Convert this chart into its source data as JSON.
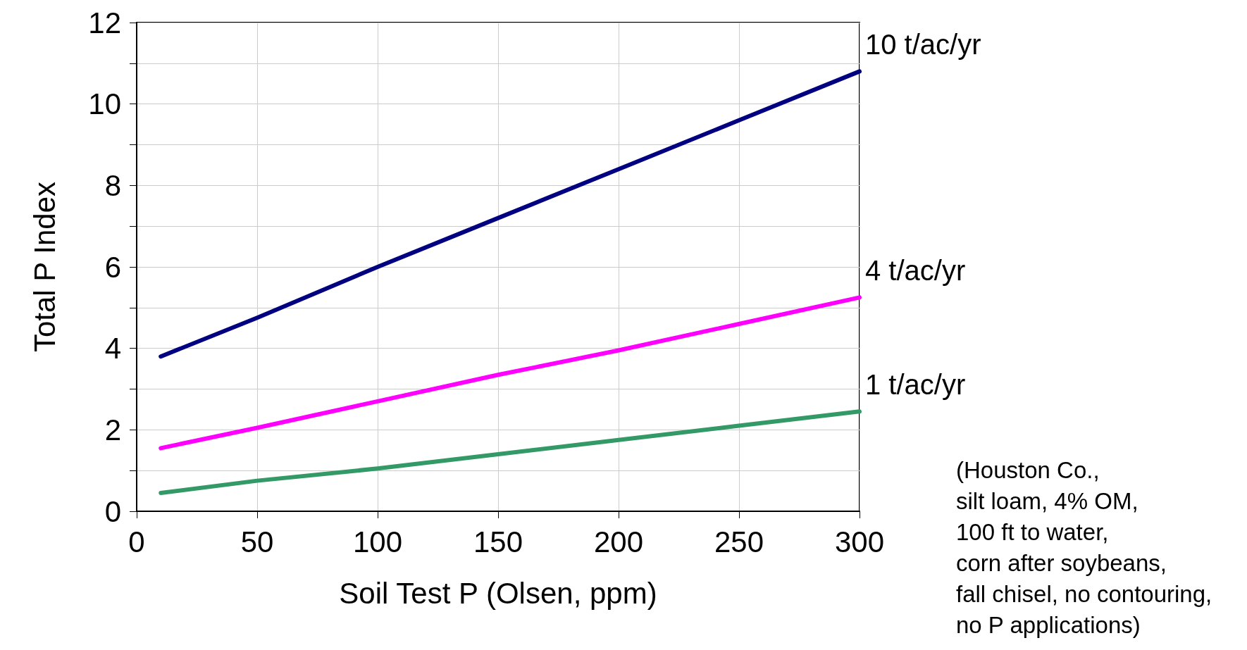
{
  "chart_data": {
    "type": "line",
    "xlabel": "Soil Test P (Olsen, ppm)",
    "ylabel": "Total P Index",
    "annotations": [
      "(Houston Co.,\nsilt loam, 4% OM,\n100 ft to water,\ncorn after soybeans,\nfall chisel, no contouring,\nno P applications)"
    ],
    "x": [
      10,
      50,
      100,
      150,
      200,
      250,
      300
    ],
    "series": [
      {
        "name": "10 t/ac/yr",
        "color": "#000080",
        "values": [
          3.8,
          4.75,
          6.0,
          7.2,
          8.4,
          9.6,
          10.8
        ]
      },
      {
        "name": "4 t/ac/yr",
        "color": "#ff00ff",
        "values": [
          1.55,
          2.05,
          2.7,
          3.35,
          3.95,
          4.6,
          5.25
        ]
      },
      {
        "name": "1 t/ac/yr",
        "color": "#339966",
        "values": [
          0.45,
          0.75,
          1.05,
          1.4,
          1.75,
          2.1,
          2.45
        ]
      }
    ],
    "xlim": [
      0,
      300
    ],
    "xticks": [
      0,
      50,
      100,
      150,
      200,
      250,
      300
    ],
    "ylim": [
      0,
      12
    ],
    "yticks": [
      0,
      {
        "value": 1,
        "label": null
      },
      2,
      {
        "value": 3,
        "label": null
      },
      4,
      {
        "value": 5,
        "label": null
      },
      6,
      {
        "value": 7,
        "label": null
      },
      8,
      {
        "value": 9,
        "label": null
      },
      10,
      {
        "value": 11,
        "label": null
      },
      12
    ],
    "grid": true,
    "marker": "none",
    "line_style": "solid",
    "legend": false
  }
}
